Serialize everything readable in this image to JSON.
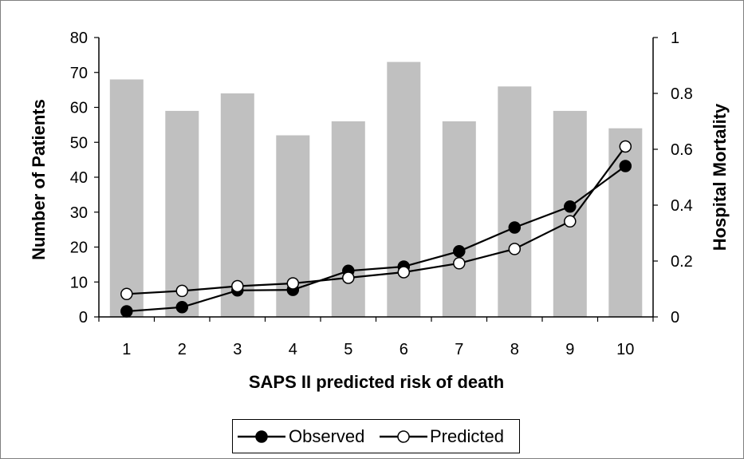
{
  "chart_data": {
    "type": "bar",
    "categories": [
      "1",
      "2",
      "3",
      "4",
      "5",
      "6",
      "7",
      "8",
      "9",
      "10"
    ],
    "xlabel": "SAPS II predicted risk of death",
    "ylabel": "Number of Patients",
    "y2label": "Hospital Mortality",
    "ylim": [
      0,
      80
    ],
    "yticks": [
      "0",
      "10",
      "20",
      "30",
      "40",
      "50",
      "60",
      "70",
      "80"
    ],
    "y2lim": [
      0,
      1
    ],
    "y2ticks": [
      "0",
      "0.2",
      "0.4",
      "0.6",
      "0.8",
      "1"
    ],
    "grid": false,
    "legend_position": "bottom",
    "bars": {
      "axis": "left",
      "color": "#c0c0c0",
      "values": [
        68,
        59,
        64,
        52,
        56,
        73,
        56,
        66,
        59,
        54
      ]
    },
    "series": [
      {
        "name": "Observed",
        "type": "line",
        "axis": "right",
        "marker": "filled-circle",
        "values": [
          0.02,
          0.035,
          0.095,
          0.097,
          0.165,
          0.18,
          0.235,
          0.32,
          0.395,
          0.54
        ]
      },
      {
        "name": "Predicted",
        "type": "line",
        "axis": "right",
        "marker": "open-circle",
        "values": [
          0.082,
          0.093,
          0.11,
          0.12,
          0.14,
          0.16,
          0.192,
          0.243,
          0.342,
          0.61
        ]
      }
    ]
  }
}
